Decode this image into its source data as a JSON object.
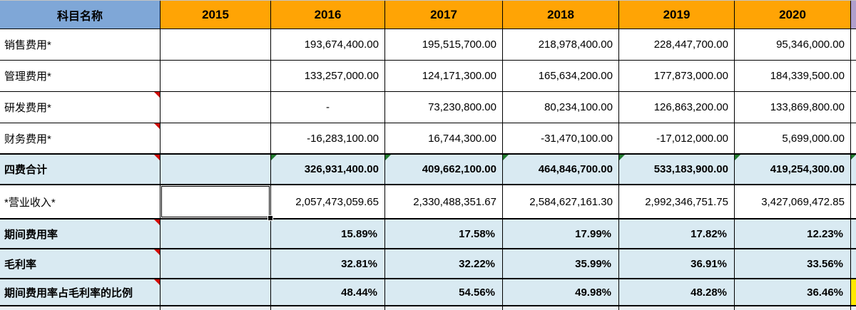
{
  "table": {
    "header": {
      "label": "科目名称",
      "years": [
        "2015",
        "2016",
        "2017",
        "2018",
        "2019",
        "2020"
      ]
    },
    "rows": [
      {
        "label": "销售费用*",
        "values": [
          "",
          "193,674,400.00",
          "195,515,700.00",
          "218,978,400.00",
          "228,447,700.00",
          "95,346,000.00"
        ]
      },
      {
        "label": "管理费用*",
        "values": [
          "",
          "133,257,000.00",
          "124,171,300.00",
          "165,634,200.00",
          "177,873,000.00",
          "184,339,500.00"
        ]
      },
      {
        "label": "研发费用*",
        "values": [
          "",
          "-",
          "73,230,800.00",
          "80,234,100.00",
          "126,863,200.00",
          "133,869,800.00"
        ]
      },
      {
        "label": "财务费用*",
        "values": [
          "",
          "-16,283,100.00",
          "16,744,300.00",
          "-31,470,100.00",
          "-17,012,000.00",
          "5,699,000.00"
        ]
      },
      {
        "label": "四费合计",
        "values": [
          "",
          "326,931,400.00",
          "409,662,100.00",
          "464,846,700.00",
          "533,183,900.00",
          "419,254,300.00"
        ]
      },
      {
        "label": "*营业收入*",
        "values": [
          "",
          "2,057,473,059.65",
          "2,330,488,351.67",
          "2,584,627,161.30",
          "2,992,346,751.75",
          "3,427,069,472.85"
        ]
      },
      {
        "label": "期间费用率",
        "values": [
          "",
          "15.89%",
          "17.58%",
          "17.99%",
          "17.82%",
          "12.23%"
        ]
      },
      {
        "label": "毛利率",
        "values": [
          "",
          "32.81%",
          "32.22%",
          "35.99%",
          "36.91%",
          "33.56%"
        ]
      },
      {
        "label": "期间费用率占毛利率的比例",
        "values": [
          "",
          "48.44%",
          "54.56%",
          "49.98%",
          "48.28%",
          "36.46%"
        ]
      }
    ],
    "indicators": {
      "red_comment_marker_rows": [
        "研发费用*",
        "财务费用*",
        "四费合计",
        "期间费用率",
        "毛利率",
        "期间费用率占毛利率的比例"
      ],
      "green_formula_flag_row": "四费合计",
      "green_formula_flag_years": [
        "2016",
        "2017",
        "2018",
        "2019",
        "2020"
      ]
    },
    "selection": {
      "row": "*营业收入*",
      "column": "2015",
      "value": ""
    }
  },
  "colors": {
    "header_label_bg": "#7fa7d7",
    "header_year_bg": "#ffa405",
    "highlight_row_bg": "#d9eaf2",
    "next_column_header_bg": "#b09fcc",
    "next_column_bottom_bg": "#ffe900",
    "comment_marker": "#cf0b04",
    "formula_flag": "#217a2e",
    "grid_border": "#000000"
  }
}
